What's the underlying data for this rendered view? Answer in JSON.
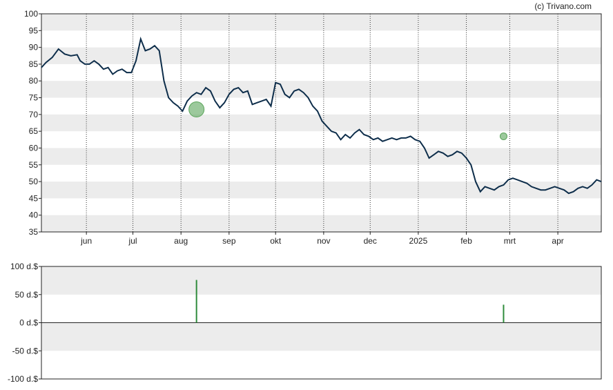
{
  "credit": "(c) Trivano.com",
  "colors": {
    "line": "#0d2d4a",
    "band": "#ececec",
    "marker": "#5aa55a",
    "volume_bar": "#2e8b3a",
    "axis": "#222222"
  },
  "chart_data": [
    {
      "type": "line",
      "title": "",
      "xlabel": "",
      "ylabel": "",
      "ylim": [
        35,
        100
      ],
      "yticks": [
        "35",
        "40",
        "45",
        "50",
        "55",
        "60",
        "65",
        "70",
        "75",
        "80",
        "85",
        "90",
        "95",
        "100"
      ],
      "grid": "alternating horizontal bands, dotted vertical month lines",
      "x_ticks": [
        "jun",
        "jul",
        "aug",
        "sep",
        "okt",
        "nov",
        "dec",
        "2025",
        "feb",
        "mrt",
        "apr"
      ],
      "x_range": [
        "2024-05-03",
        "2025-04-29"
      ],
      "series": [
        {
          "x": [
            "2024-05-03",
            "2024-05-06",
            "2024-05-10",
            "2024-05-14",
            "2024-05-18",
            "2024-05-22",
            "2024-05-26",
            "2024-05-28",
            "2024-05-31",
            "2024-06-03",
            "2024-06-06",
            "2024-06-09",
            "2024-06-12",
            "2024-06-15",
            "2024-06-18",
            "2024-06-21",
            "2024-06-24",
            "2024-06-27",
            "2024-06-30",
            "2024-07-03",
            "2024-07-06",
            "2024-07-09",
            "2024-07-12",
            "2024-07-15",
            "2024-07-18",
            "2024-07-21",
            "2024-07-24",
            "2024-07-27",
            "2024-07-30",
            "2024-08-02",
            "2024-08-05",
            "2024-08-08",
            "2024-08-11",
            "2024-08-14",
            "2024-08-17",
            "2024-08-20",
            "2024-08-23",
            "2024-08-26",
            "2024-08-29",
            "2024-09-01",
            "2024-09-04",
            "2024-09-07",
            "2024-09-10",
            "2024-09-13",
            "2024-09-16",
            "2024-09-19",
            "2024-09-22",
            "2024-09-25",
            "2024-09-28",
            "2024-10-01",
            "2024-10-04",
            "2024-10-07",
            "2024-10-10",
            "2024-10-13",
            "2024-10-16",
            "2024-10-19",
            "2024-10-22",
            "2024-10-25",
            "2024-10-28",
            "2024-10-31",
            "2024-11-03",
            "2024-11-06",
            "2024-11-09",
            "2024-11-12",
            "2024-11-15",
            "2024-11-18",
            "2024-11-21",
            "2024-11-24",
            "2024-11-27",
            "2024-11-30",
            "2024-12-03",
            "2024-12-06",
            "2024-12-09",
            "2024-12-12",
            "2024-12-15",
            "2024-12-18",
            "2024-12-21",
            "2024-12-24",
            "2024-12-27",
            "2024-12-30",
            "2025-01-02",
            "2025-01-05",
            "2025-01-08",
            "2025-01-11",
            "2025-01-14",
            "2025-01-17",
            "2025-01-20",
            "2025-01-23",
            "2025-01-26",
            "2025-01-29",
            "2025-02-01",
            "2025-02-04",
            "2025-02-07",
            "2025-02-10",
            "2025-02-13",
            "2025-02-16",
            "2025-02-19",
            "2025-02-22",
            "2025-02-25",
            "2025-02-28",
            "2025-03-03",
            "2025-03-06",
            "2025-03-09",
            "2025-03-12",
            "2025-03-15",
            "2025-03-18",
            "2025-03-21",
            "2025-03-24",
            "2025-03-27",
            "2025-03-30",
            "2025-04-02",
            "2025-04-05",
            "2025-04-08",
            "2025-04-11",
            "2025-04-14",
            "2025-04-17",
            "2025-04-20",
            "2025-04-23",
            "2025-04-26",
            "2025-04-29"
          ],
          "y": [
            84.0,
            85.5,
            87.0,
            89.5,
            88.0,
            87.5,
            87.8,
            86.0,
            85.0,
            85.0,
            86.0,
            85.0,
            83.5,
            84.0,
            82.0,
            83.0,
            83.5,
            82.5,
            82.5,
            86.0,
            92.5,
            89.0,
            89.5,
            90.5,
            89.0,
            80.0,
            75.0,
            73.5,
            72.5,
            71.0,
            74.0,
            75.5,
            76.5,
            76.0,
            78.0,
            77.0,
            74.0,
            72.0,
            73.5,
            76.0,
            77.5,
            78.0,
            76.5,
            77.0,
            73.0,
            73.5,
            74.0,
            74.5,
            72.5,
            79.5,
            79.0,
            76.0,
            75.0,
            77.0,
            77.5,
            76.5,
            75.0,
            72.5,
            71.0,
            68.0,
            66.5,
            65.0,
            64.5,
            62.5,
            64.0,
            63.0,
            64.5,
            65.5,
            64.0,
            63.5,
            62.5,
            63.0,
            62.0,
            62.5,
            63.0,
            62.5,
            63.0,
            63.0,
            63.5,
            62.5,
            62.0,
            60.0,
            57.0,
            58.0,
            59.0,
            58.5,
            57.5,
            58.0,
            59.0,
            58.5,
            57.0,
            55.0,
            50.0,
            47.0,
            48.5,
            48.0,
            47.5,
            48.5,
            49.0,
            50.5,
            51.0,
            50.5,
            50.0,
            49.5,
            48.5,
            48.0,
            47.5,
            47.5,
            48.0,
            48.5,
            48.0,
            47.5,
            46.5,
            47.0,
            48.0,
            48.5,
            48.0,
            49.0,
            50.5,
            50.0
          ],
          "markers": [
            {
              "x": "2024-08-11",
              "y": 71.5,
              "size": "large"
            },
            {
              "x": "2025-02-25",
              "y": 63.5,
              "size": "small"
            }
          ]
        }
      ]
    },
    {
      "type": "bar",
      "title": "",
      "xlabel": "",
      "ylabel": "",
      "ylim": [
        -100,
        100
      ],
      "yticks": [
        "100 d.$",
        "50 d.$",
        "0 d.$",
        "-50 d.$",
        "-100 d.$"
      ],
      "series": [
        {
          "x": [
            "2024-08-11",
            "2025-02-25"
          ],
          "values": [
            76,
            32
          ]
        }
      ]
    }
  ]
}
